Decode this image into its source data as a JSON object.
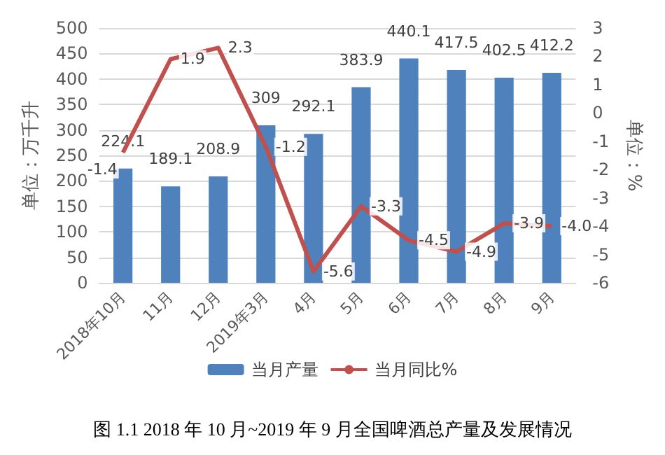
{
  "chart_data": {
    "type": "bar",
    "categories": [
      "2018年10月",
      "11月",
      "12月",
      "2019年3月",
      "4月",
      "5月",
      "6月",
      "7月",
      "8月",
      "9月"
    ],
    "series": [
      {
        "name": "当月产量",
        "color": "#4f81bd",
        "values": [
          224.1,
          189.1,
          208.9,
          309,
          292.1,
          383.9,
          440.1,
          417.5,
          402.5,
          412.2
        ]
      },
      {
        "name": "当月同比%",
        "type": "line",
        "axis": "y2",
        "color": "#c0504d",
        "values": [
          -1.4,
          1.9,
          2.3,
          -1.2,
          -5.6,
          -3.3,
          -4.5,
          -4.9,
          -3.9,
          -4.0
        ],
        "value_labels": [
          "-1.4",
          "1.9",
          "2.3",
          "-1.2",
          "-5.6",
          "-3.3",
          "-4.5",
          "-4.9",
          "-3.9",
          "-4.0"
        ]
      }
    ],
    "ylabel": "单位：万千升",
    "y2label": "单位：%",
    "ylim": [
      0,
      500
    ],
    "yticks": [
      0,
      50,
      100,
      150,
      200,
      250,
      300,
      350,
      400,
      450,
      500
    ],
    "y2lim": [
      -6,
      3
    ],
    "y2ticks": [
      -6,
      -5,
      -4,
      -3,
      -2,
      -1,
      0,
      1,
      2,
      3
    ],
    "grid": "y",
    "legend": "bottom",
    "data_labels": true,
    "marker": "none",
    "annotations": [
      "图 1.1 2018 年 10 月~2019 年 9 月全国啤酒总产量及发展情况"
    ]
  }
}
